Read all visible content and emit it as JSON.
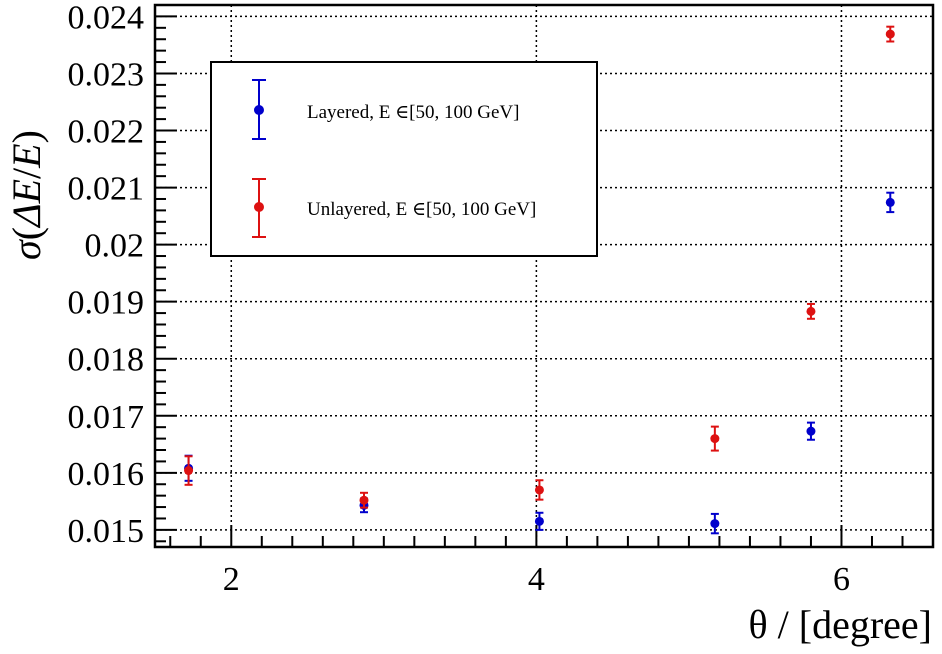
{
  "chart_data": {
    "type": "scatter",
    "title": "",
    "xlabel": "θ / [degree]",
    "ylabel": "σ(ΔE/E)",
    "xlim": [
      1.5,
      6.6
    ],
    "ylim": [
      0.0147,
      0.0242
    ],
    "x_ticks": [
      2,
      4,
      6
    ],
    "y_ticks": [
      0.015,
      0.016,
      0.017,
      0.018,
      0.019,
      0.02,
      0.021,
      0.022,
      0.023,
      0.024
    ],
    "y_tick_labels": [
      "0.015",
      "0.016",
      "0.017",
      "0.018",
      "0.019",
      "0.02",
      "0.021",
      "0.022",
      "0.023",
      "0.024"
    ],
    "grid": true,
    "legend_position": "top-left",
    "series": [
      {
        "name": "Layered, E ∈[50, 100 GeV]",
        "color": "#0000cc",
        "points": [
          {
            "x": 1.72,
            "y": 0.01608,
            "err": 0.00022
          },
          {
            "x": 2.87,
            "y": 0.01543,
            "err": 0.00012
          },
          {
            "x": 4.02,
            "y": 0.01515,
            "err": 0.00015
          },
          {
            "x": 5.17,
            "y": 0.01511,
            "err": 0.00017
          },
          {
            "x": 5.8,
            "y": 0.01673,
            "err": 0.00015
          },
          {
            "x": 6.32,
            "y": 0.02074,
            "err": 0.00017
          }
        ]
      },
      {
        "name": "Unlayered, E ∈[50, 100 GeV]",
        "color": "#dd1111",
        "points": [
          {
            "x": 1.72,
            "y": 0.01604,
            "err": 0.00025
          },
          {
            "x": 2.87,
            "y": 0.01552,
            "err": 0.00013
          },
          {
            "x": 4.02,
            "y": 0.0157,
            "err": 0.00017
          },
          {
            "x": 5.17,
            "y": 0.0166,
            "err": 0.00021
          },
          {
            "x": 5.8,
            "y": 0.01883,
            "err": 0.00013
          },
          {
            "x": 6.32,
            "y": 0.02369,
            "err": 0.00013
          }
        ]
      }
    ]
  },
  "legend": {
    "entries": [
      {
        "prefix": "Layered, ",
        "var": "E",
        "suffix": " ∈[50, 100 GeV]"
      },
      {
        "prefix": "Unlayered, ",
        "var": "E",
        "suffix": " ∈[50, 100 GeV]"
      }
    ]
  },
  "axis_titles": {
    "x": "θ / [degree]",
    "y_sigma": "σ",
    "y_delta": "ΔE",
    "y_slash": "/",
    "y_e": "E"
  }
}
